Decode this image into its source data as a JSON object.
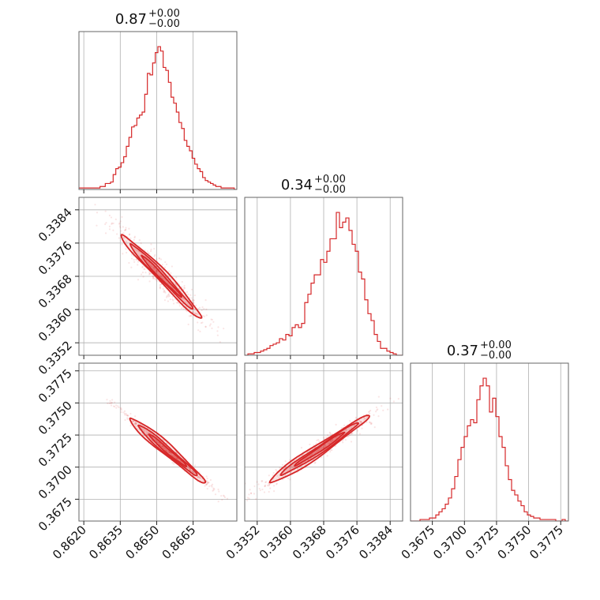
{
  "chart_data": {
    "type": "corner",
    "color": "#d62728",
    "grid": true,
    "parameters": [
      {
        "range": [
          0.8618,
          0.8683
        ],
        "ticks": [
          "0.8620",
          "0.8635",
          "0.8650",
          "0.8665"
        ],
        "title_value": "0.87",
        "title_plus": "+0.00",
        "title_minus": "−0.00"
      },
      {
        "range": [
          0.3349,
          0.3387
        ],
        "ticks": [
          "0.3352",
          "0.3360",
          "0.3368",
          "0.3376",
          "0.3384"
        ],
        "title_value": "0.34",
        "title_plus": "+0.00",
        "title_minus": "−0.00"
      },
      {
        "range": [
          0.3658,
          0.3781
        ],
        "ticks": [
          "0.3675",
          "0.3700",
          "0.3725",
          "0.3750",
          "0.3775"
        ],
        "title_value": "0.37",
        "title_plus": "+0.00",
        "title_minus": "−0.00"
      }
    ],
    "histograms": [
      {
        "param": 0,
        "bins": [
          0.8618,
          0.8683
        ],
        "counts": [
          1,
          1,
          1,
          1,
          1,
          1,
          1,
          1,
          2,
          2,
          4,
          4,
          5,
          10,
          14,
          15,
          18,
          22,
          29,
          35,
          42,
          43,
          48,
          50,
          52,
          64,
          78,
          77,
          85,
          92,
          96,
          93,
          82,
          80,
          72,
          62,
          58,
          52,
          45,
          41,
          33,
          29,
          26,
          21,
          17,
          14,
          12,
          8,
          6,
          5,
          4,
          3,
          2,
          2,
          1,
          1,
          1,
          1,
          1,
          0
        ]
      },
      {
        "param": 1,
        "bins": [
          0.3349,
          0.3387
        ],
        "counts": [
          0,
          1,
          1,
          2,
          2,
          3,
          4,
          5,
          7,
          8,
          9,
          12,
          11,
          15,
          14,
          20,
          22,
          20,
          23,
          38,
          44,
          52,
          58,
          58,
          69,
          67,
          75,
          84,
          84,
          103,
          92,
          96,
          99,
          90,
          80,
          75,
          60,
          55,
          40,
          30,
          25,
          15,
          10,
          5,
          5,
          3,
          2,
          1,
          0,
          0
        ]
      },
      {
        "param": 2,
        "bins": [
          0.3658,
          0.3781
        ],
        "counts": [
          0,
          0,
          0,
          1,
          1,
          1,
          2,
          2,
          4,
          6,
          8,
          11,
          15,
          21,
          29,
          40,
          48,
          55,
          62,
          66,
          64,
          79,
          88,
          93,
          88,
          71,
          80,
          68,
          55,
          48,
          36,
          27,
          20,
          17,
          13,
          10,
          6,
          4,
          3,
          2,
          2,
          1,
          1,
          1,
          1,
          1,
          0,
          0,
          1,
          0
        ]
      }
    ],
    "pairs": [
      {
        "x_param": 0,
        "y_param": 1,
        "center": [
          0.86515,
          0.337
        ],
        "direction": "negative-correlation",
        "end_a": [
          0.86355,
          0.3378
        ],
        "end_b": [
          0.86685,
          0.3358
        ],
        "halfwidth": [
          0.00012,
          0.00011
        ]
      },
      {
        "x_param": 0,
        "y_param": 2,
        "center": [
          0.86515,
          0.3716
        ],
        "direction": "negative-correlation",
        "end_a": [
          0.8639,
          0.3738
        ],
        "end_b": [
          0.867,
          0.3688
        ],
        "halfwidth": [
          8e-05,
          9e-05
        ]
      },
      {
        "x_param": 1,
        "y_param": 2,
        "center": [
          0.3369,
          0.3712
        ],
        "direction": "positive-correlation",
        "end_a": [
          0.3355,
          0.3688
        ],
        "end_b": [
          0.3379,
          0.374
        ],
        "halfwidth": [
          0.0001,
          0.00012
        ]
      }
    ]
  }
}
